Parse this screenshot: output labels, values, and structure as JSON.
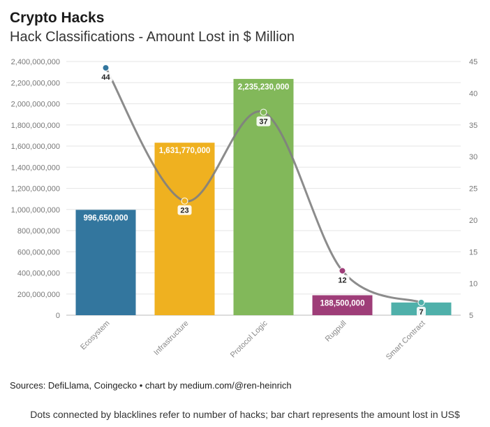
{
  "header": {
    "title": "Crypto Hacks",
    "subtitle": "Hack Classifications - Amount Lost in $ Million"
  },
  "footer": {
    "source": "Sources: DefiLlama, Coingecko • chart by medium.com/@ren-heinrich",
    "note": "Dots connected by blacklines refer to number of hacks; bar chart represents the amount lost in US$"
  },
  "chart_data": {
    "type": "bar",
    "title": "Crypto Hacks",
    "subtitle": "Hack Classifications - Amount Lost in $ Million",
    "categories": [
      "Ecosystem",
      "Infrastructure",
      "Protocol Logic",
      "Rugpull",
      "Smart Contract"
    ],
    "series": [
      {
        "type": "bar",
        "axis": "left",
        "values": [
          996650000,
          1631770000,
          2235230000,
          188500000,
          120000000
        ],
        "value_labels": [
          "996,650,000",
          "1,631,770,000",
          "2,235,230,000",
          "188,500,000",
          ""
        ],
        "colors": [
          "#33769e",
          "#efb120",
          "#82b85a",
          "#9e3d78",
          "#4fb0aa"
        ]
      },
      {
        "type": "line",
        "axis": "right",
        "values": [
          44,
          23,
          37,
          12,
          7
        ],
        "value_labels": [
          "44",
          "23",
          "37",
          "12",
          "7"
        ],
        "line_color": "#808080",
        "dot_colors": [
          "#33769e",
          "#efb120",
          "#82b85a",
          "#9e3d78",
          "#4fb0aa"
        ]
      }
    ],
    "y_left": {
      "min": 0,
      "max": 2400000000,
      "ticks": [
        0,
        200000000,
        400000000,
        600000000,
        800000000,
        1000000000,
        1200000000,
        1400000000,
        1600000000,
        1800000000,
        2000000000,
        2200000000,
        2400000000
      ],
      "tick_labels": [
        "0",
        "200,000,000",
        "400,000,000",
        "600,000,000",
        "800,000,000",
        "1,000,000,000",
        "1,200,000,000",
        "1,400,000,000",
        "1,600,000,000",
        "1,800,000,000",
        "2,000,000,000",
        "2,200,000,000",
        "2,400,000,000"
      ]
    },
    "y_right": {
      "min": 5,
      "max": 45,
      "ticks": [
        5,
        10,
        15,
        20,
        25,
        30,
        35,
        40,
        45
      ],
      "tick_labels": [
        "5",
        "10",
        "15",
        "20",
        "25",
        "30",
        "35",
        "40",
        "45"
      ]
    },
    "grid": true,
    "legend": "none"
  }
}
